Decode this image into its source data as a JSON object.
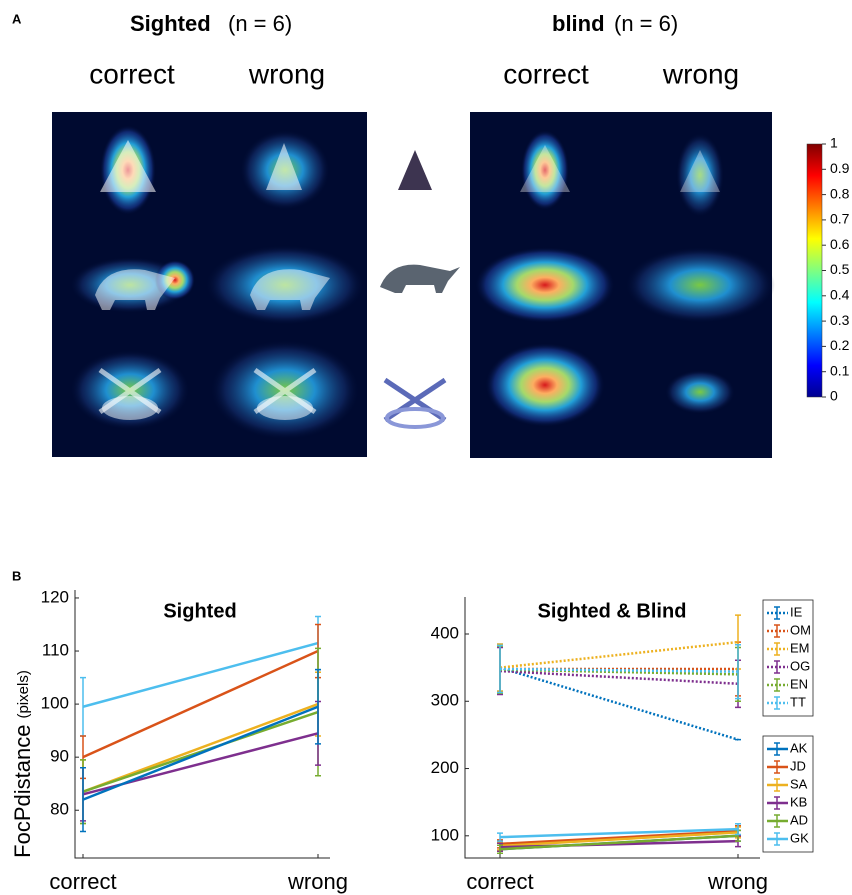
{
  "panel_a": {
    "label": "A",
    "groups": [
      {
        "name": "Sighted",
        "n": "(n = 6)",
        "columns": [
          "correct",
          "wrong"
        ]
      },
      {
        "name": "blind",
        "n": "(n = 6)",
        "columns": [
          "correct",
          "wrong"
        ]
      }
    ],
    "colorbar": {
      "lim": [
        0,
        1
      ],
      "ticks": [
        0,
        0.1,
        0.2,
        0.3,
        0.4,
        0.5,
        0.6,
        0.7,
        0.8,
        0.9,
        1
      ]
    }
  },
  "panel_b": {
    "label": "B"
  },
  "chart_data": [
    {
      "type": "line",
      "title": "Sighted",
      "ylabel": "FocPdistance",
      "ylabel_unit": "(pixels)",
      "categories": [
        "correct",
        "wrong"
      ],
      "ylim": [
        71,
        121.5
      ],
      "yticks": [
        80,
        90,
        100,
        110,
        120
      ],
      "series": [
        {
          "color": "#4dbeee",
          "values": [
            99.5,
            111.5
          ],
          "errors": [
            5.5,
            5
          ]
        },
        {
          "color": "#d95319",
          "values": [
            90,
            110
          ],
          "errors": [
            4,
            5
          ]
        },
        {
          "color": "#edb120",
          "values": [
            83.5,
            100
          ],
          "errors": [
            6,
            6
          ]
        },
        {
          "color": "#77ac30",
          "values": [
            83.5,
            98.5
          ],
          "errors": [
            6,
            12
          ]
        },
        {
          "color": "#7e2f8e",
          "values": [
            83,
            94.5
          ],
          "errors": [
            5,
            6
          ]
        },
        {
          "color": "#0072bd",
          "values": [
            82,
            99.5
          ],
          "errors": [
            6,
            7
          ]
        }
      ]
    },
    {
      "type": "line",
      "title": "Sighted & Blind",
      "legend": "right",
      "categories": [
        "correct",
        "wrong"
      ],
      "ylim": [
        67,
        455
      ],
      "yticks": [
        100,
        200,
        300,
        400
      ],
      "series": [
        {
          "name": "IE",
          "color": "#0072bd",
          "dashed": true,
          "values": [
            350,
            243
          ],
          "errors": [
            35,
            0
          ]
        },
        {
          "name": "OM",
          "color": "#d95319",
          "dashed": true,
          "values": [
            348,
            348
          ],
          "errors": [
            35,
            40
          ]
        },
        {
          "name": "EM",
          "color": "#edb120",
          "dashed": true,
          "values": [
            350,
            388
          ],
          "errors": [
            35,
            40
          ]
        },
        {
          "name": "OG",
          "color": "#7e2f8e",
          "dashed": true,
          "values": [
            345,
            326
          ],
          "errors": [
            35,
            35
          ]
        },
        {
          "name": "EN",
          "color": "#77ac30",
          "dashed": true,
          "values": [
            347,
            340
          ],
          "errors": [
            35,
            40
          ]
        },
        {
          "name": "TT",
          "color": "#4dbeee",
          "dashed": true,
          "values": [
            348,
            344
          ],
          "errors": [
            35,
            40
          ]
        },
        {
          "name": "AK",
          "color": "#0072bd",
          "values": [
            80,
            100
          ],
          "errors": [
            6,
            8
          ]
        },
        {
          "name": "JD",
          "color": "#d95319",
          "values": [
            88,
            107
          ],
          "errors": [
            6,
            8
          ]
        },
        {
          "name": "SA",
          "color": "#edb120",
          "values": [
            85,
            105
          ],
          "errors": [
            6,
            8
          ]
        },
        {
          "name": "KB",
          "color": "#7e2f8e",
          "values": [
            83,
            92
          ],
          "errors": [
            6,
            8
          ]
        },
        {
          "name": "AD",
          "color": "#77ac30",
          "values": [
            80,
            100
          ],
          "errors": [
            6,
            8
          ]
        },
        {
          "name": "GK",
          "color": "#4dbeee",
          "values": [
            98,
            110
          ],
          "errors": [
            6,
            8
          ]
        }
      ]
    }
  ]
}
